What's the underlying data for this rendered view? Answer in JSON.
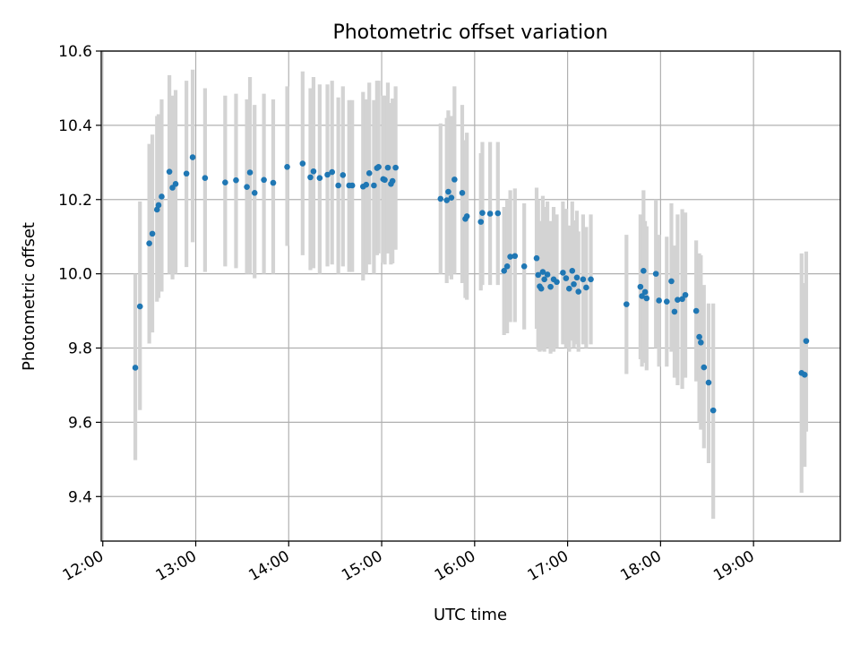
{
  "chart_data": {
    "type": "scatter",
    "title": "Photometric offset variation",
    "xlabel": "UTC time",
    "ylabel": "Photometric offset",
    "xlim": [
      "11:59",
      "19:56"
    ],
    "ylim": [
      9.28,
      10.6
    ],
    "xticks": [
      "12:00",
      "13:00",
      "14:00",
      "15:00",
      "16:00",
      "17:00",
      "18:00",
      "19:00"
    ],
    "yticks": [
      9.4,
      9.6,
      9.8,
      10.0,
      10.2,
      10.4,
      10.6
    ],
    "ytick_labels": [
      "9.4",
      "9.6",
      "9.8",
      "10.0",
      "10.2",
      "10.4",
      "10.6"
    ],
    "grid": true,
    "marker_color": "#1f77b4",
    "errorbar_color": "#d3d3d3",
    "series": [
      {
        "x": [
          "12:21",
          "12:24",
          "12:30",
          "12:32",
          "12:35",
          "12:36",
          "12:38",
          "12:43",
          "12:45",
          "12:47",
          "12:54",
          "12:58",
          "13:06",
          "13:19",
          "13:26",
          "13:33",
          "13:35",
          "13:38",
          "13:44",
          "13:50",
          "13:59",
          "14:09",
          "14:14",
          "14:16",
          "14:20",
          "14:25",
          "14:28",
          "14:32",
          "14:35",
          "14:39",
          "14:41",
          "14:48",
          "14:50",
          "14:52",
          "14:55",
          "14:57",
          "14:58",
          "15:01",
          "15:02",
          "15:04",
          "15:06",
          "15:07",
          "15:09",
          "15:38",
          "15:42",
          "15:43",
          "15:45",
          "15:47",
          "15:52",
          "15:54",
          "15:55",
          "16:04",
          "16:05",
          "16:10",
          "16:15",
          "16:19",
          "16:21",
          "16:23",
          "16:26",
          "16:32",
          "16:40",
          "16:41",
          "16:42",
          "16:43",
          "16:44",
          "16:45",
          "16:47",
          "16:49",
          "16:51",
          "16:53",
          "16:57",
          "16:59",
          "17:01",
          "17:03",
          "17:04",
          "17:06",
          "17:07",
          "17:10",
          "17:12",
          "17:15",
          "17:38",
          "17:47",
          "17:48",
          "17:49",
          "17:50",
          "17:51",
          "17:57",
          "17:59",
          "18:04",
          "18:07",
          "18:09",
          "18:11",
          "18:14",
          "18:16",
          "18:23",
          "18:25",
          "18:26",
          "18:28",
          "18:31",
          "18:34",
          "19:31",
          "19:33",
          "19:34"
        ],
        "y": [
          9.747,
          9.912,
          10.082,
          10.108,
          10.173,
          10.185,
          10.208,
          10.275,
          10.232,
          10.242,
          10.27,
          10.314,
          10.258,
          10.246,
          10.252,
          10.234,
          10.273,
          10.218,
          10.253,
          10.245,
          10.288,
          10.297,
          10.26,
          10.276,
          10.258,
          10.267,
          10.274,
          10.238,
          10.266,
          10.238,
          10.238,
          10.235,
          10.24,
          10.271,
          10.238,
          10.285,
          10.288,
          10.255,
          10.253,
          10.286,
          10.242,
          10.25,
          10.286,
          10.202,
          10.198,
          10.221,
          10.205,
          10.254,
          10.218,
          10.148,
          10.155,
          10.14,
          10.164,
          10.162,
          10.163,
          10.008,
          10.02,
          10.046,
          10.048,
          10.02,
          10.042,
          9.997,
          9.966,
          9.96,
          10.005,
          9.985,
          9.998,
          9.965,
          9.985,
          9.978,
          10.003,
          9.988,
          9.96,
          10.008,
          9.972,
          9.99,
          9.952,
          9.985,
          9.963,
          9.985,
          9.918,
          9.965,
          9.94,
          10.008,
          9.951,
          9.934,
          10.0,
          9.928,
          9.925,
          9.98,
          9.898,
          9.93,
          9.932,
          9.943,
          9.9,
          9.83,
          9.815,
          9.748,
          9.707,
          9.632,
          9.733,
          9.728,
          9.819
        ],
        "yerr_low": [
          9.498,
          9.633,
          9.812,
          9.842,
          9.925,
          9.935,
          9.952,
          10.0,
          9.985,
          10.0,
          10.018,
          10.085,
          10.005,
          10.02,
          10.015,
          10.0,
          10.0,
          9.988,
          10.0,
          10.0,
          10.075,
          10.05,
          10.01,
          10.015,
          10.0,
          10.02,
          10.025,
          10.0,
          10.02,
          10.005,
          10.005,
          9.982,
          10.0,
          10.025,
          10.0,
          10.05,
          10.055,
          10.03,
          10.025,
          10.055,
          10.025,
          10.028,
          10.065,
          10.0,
          9.975,
          9.995,
          9.985,
          10.0,
          9.975,
          9.935,
          9.93,
          9.955,
          9.97,
          9.97,
          9.97,
          9.835,
          9.84,
          9.87,
          9.87,
          9.85,
          9.852,
          9.795,
          9.79,
          9.793,
          9.805,
          9.79,
          9.8,
          9.785,
          9.79,
          9.8,
          9.81,
          9.8,
          9.79,
          9.82,
          9.8,
          9.81,
          9.79,
          9.81,
          9.8,
          9.81,
          9.73,
          9.77,
          9.75,
          9.79,
          9.76,
          9.74,
          9.8,
          9.75,
          9.75,
          9.79,
          9.72,
          9.7,
          9.69,
          9.72,
          9.71,
          9.6,
          9.58,
          9.53,
          9.49,
          9.34,
          9.41,
          9.48,
          9.575
        ],
        "yerr_high": [
          10.0,
          10.195,
          10.35,
          10.375,
          10.425,
          10.43,
          10.47,
          10.535,
          10.48,
          10.495,
          10.52,
          10.55,
          10.5,
          10.48,
          10.485,
          10.47,
          10.53,
          10.455,
          10.485,
          10.47,
          10.505,
          10.545,
          10.5,
          10.53,
          10.51,
          10.51,
          10.52,
          10.475,
          10.505,
          10.468,
          10.468,
          10.49,
          10.47,
          10.515,
          10.468,
          10.52,
          10.52,
          10.48,
          10.48,
          10.515,
          10.46,
          10.472,
          10.505,
          10.405,
          10.42,
          10.44,
          10.425,
          10.505,
          10.455,
          10.36,
          10.38,
          10.325,
          10.355,
          10.355,
          10.355,
          10.18,
          10.2,
          10.225,
          10.23,
          10.19,
          10.232,
          10.2,
          10.142,
          10.128,
          10.21,
          10.18,
          10.195,
          10.142,
          10.18,
          10.16,
          10.195,
          10.175,
          10.13,
          10.195,
          10.144,
          10.17,
          10.114,
          10.16,
          10.126,
          10.16,
          10.105,
          10.16,
          10.13,
          10.225,
          10.142,
          10.128,
          10.2,
          10.105,
          10.1,
          10.19,
          10.076,
          10.16,
          10.174,
          10.165,
          10.09,
          10.055,
          10.05,
          9.97,
          9.92,
          9.92,
          10.055,
          9.975,
          10.06
        ]
      }
    ]
  }
}
